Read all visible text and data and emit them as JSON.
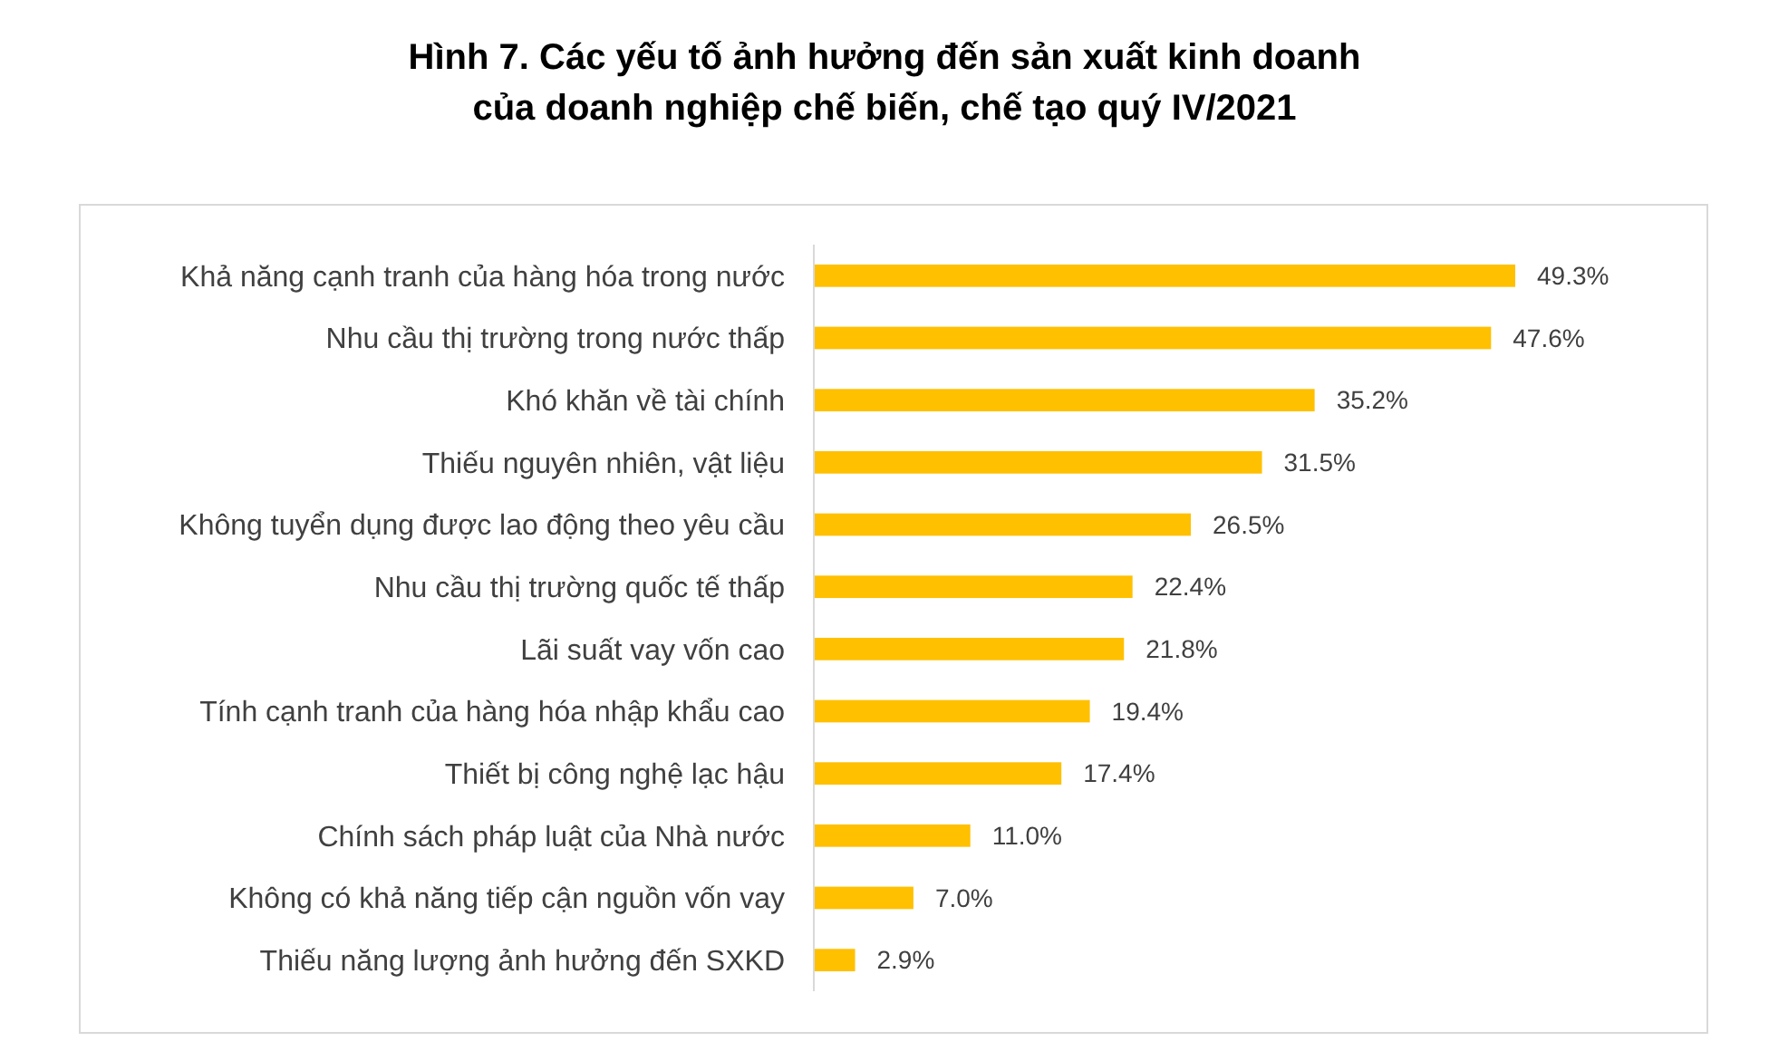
{
  "chart_data": {
    "type": "bar",
    "orientation": "horizontal",
    "title": "Hình 7. Các yếu tố ảnh hưởng đến sản xuất kinh doanh\ncủa doanh nghiệp chế biến, chế tạo quý IV/2021",
    "categories": [
      "Khả năng cạnh tranh của hàng hóa trong nước",
      "Nhu cầu thị trường trong nước thấp",
      "Khó khăn về tài chính",
      "Thiếu nguyên nhiên, vật liệu",
      "Không tuyển dụng được lao động theo yêu cầu",
      "Nhu cầu thị trường quốc tế thấp",
      "Lãi suất vay vốn cao",
      "Tính cạnh tranh của hàng hóa nhập khẩu cao",
      "Thiết bị công nghệ lạc hậu",
      "Chính sách pháp luật của Nhà nước",
      "Không có khả năng tiếp cận nguồn vốn vay",
      "Thiếu năng lượng ảnh hưởng đến SXKD"
    ],
    "values": [
      49.3,
      47.6,
      35.2,
      31.5,
      26.5,
      22.4,
      21.8,
      19.4,
      17.4,
      11.0,
      7.0,
      2.9
    ],
    "value_labels": [
      "49.3%",
      "47.6%",
      "35.2%",
      "31.5%",
      "26.5%",
      "22.4%",
      "21.8%",
      "19.4%",
      "17.4%",
      "11.0%",
      "7.0%",
      "2.9%"
    ],
    "color": "#ffc000",
    "tick_labels": "y"
  }
}
